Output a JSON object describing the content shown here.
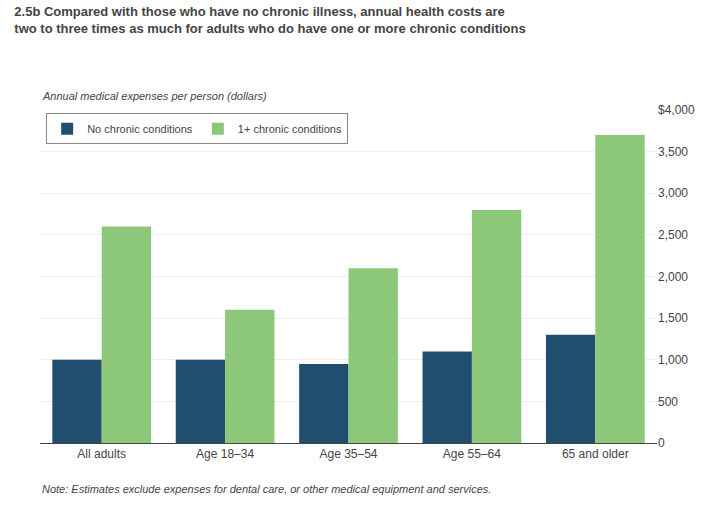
{
  "chart_data": {
    "type": "bar",
    "title": "2.5b Compared with those who have no chronic illness, annual health costs are\ntwo to three times as much for adults who do have one or more chronic conditions",
    "y_label": "Annual medical expenses per person (dollars)",
    "annotations": [
      "Note: Estimates exclude expenses for dental care, or other medical equipment and services."
    ],
    "categories": [
      "All adults",
      "Age 18–34",
      "Age 35–54",
      "Age 55–64",
      "65 and older"
    ],
    "series": [
      {
        "name": "No chronic conditions",
        "color": "#1f4e6e",
        "values": [
          1000,
          1000,
          950,
          1100,
          1300
        ]
      },
      {
        "name": "1+ chronic conditions",
        "color": "#8dc87a",
        "values": [
          2600,
          1600,
          2100,
          2800,
          3700
        ]
      }
    ],
    "ylim": [
      0,
      4000
    ],
    "yticks": [
      0,
      500,
      {
        "value": 1000,
        "label": "1,000"
      },
      {
        "value": 1500,
        "label": "1,500"
      },
      {
        "value": 2000,
        "label": "2,000"
      },
      {
        "value": 2500,
        "label": "2,500"
      },
      {
        "value": 3000,
        "label": "3,000"
      },
      {
        "value": 3500,
        "label": "3,500"
      },
      {
        "value": 4000,
        "label": "$4,000"
      }
    ],
    "grid": true,
    "legend": "upper left"
  }
}
